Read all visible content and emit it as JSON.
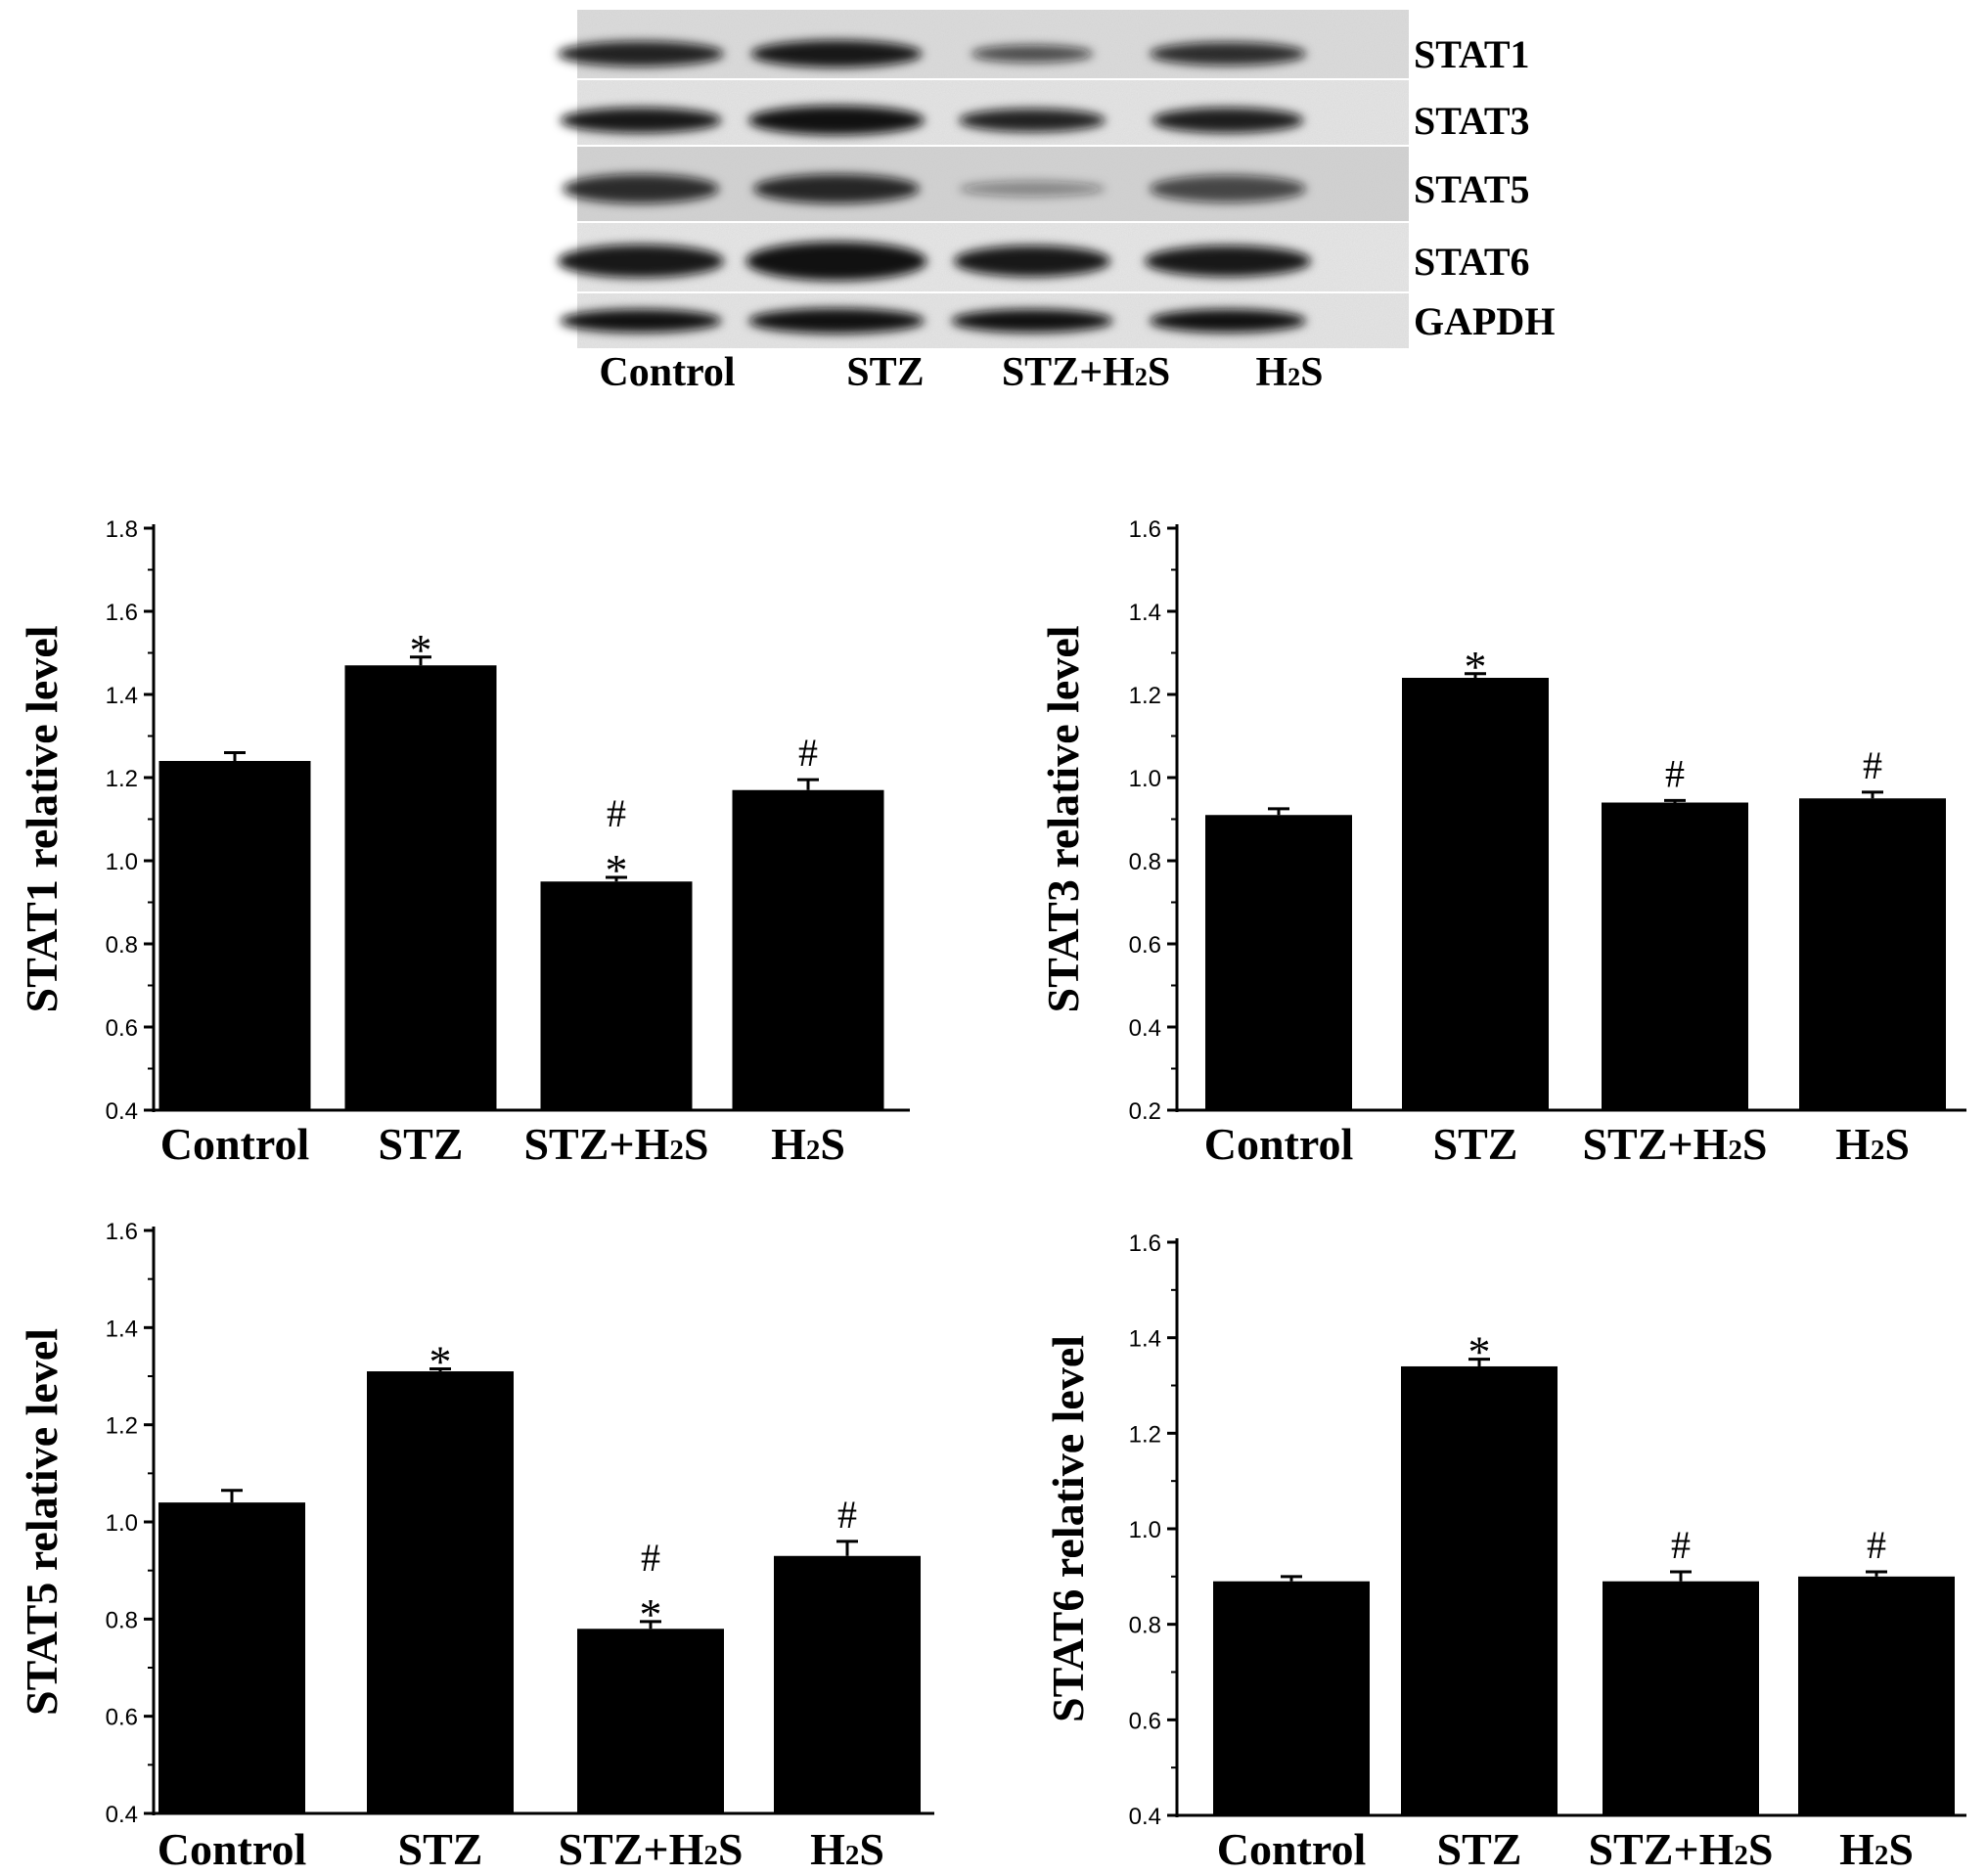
{
  "blot": {
    "proteins": [
      "STAT1",
      "STAT3",
      "STAT5",
      "STAT6",
      "GAPDH"
    ],
    "lanes": [
      {
        "main": "Control",
        "sub": "",
        "tail": ""
      },
      {
        "main": "STZ",
        "sub": "",
        "tail": ""
      },
      {
        "main": "STZ+H",
        "sub": "2",
        "tail": "S"
      },
      {
        "main": "H",
        "sub": "2",
        "tail": "S"
      }
    ]
  },
  "chart_data": [
    {
      "type": "bar",
      "ylabel": "STAT1 relative level",
      "categories": [
        {
          "main": "Control",
          "sub": "",
          "tail": ""
        },
        {
          "main": "STZ",
          "sub": "",
          "tail": ""
        },
        {
          "main": "STZ+H",
          "sub": "2",
          "tail": "S"
        },
        {
          "main": "H",
          "sub": "2",
          "tail": "S"
        }
      ],
      "values": [
        1.24,
        1.47,
        0.95,
        1.17
      ],
      "errors": [
        0.02,
        0.02,
        0.01,
        0.025
      ],
      "annotations": [
        [],
        [
          "*"
        ],
        [
          "*",
          "#"
        ],
        [
          "#"
        ]
      ],
      "ylim": [
        0.4,
        1.8
      ],
      "yticks": [
        "0.4",
        "0.6",
        "0.8",
        "1.0",
        "1.2",
        "1.4",
        "1.6",
        "1.8"
      ],
      "bar_color": "#000000"
    },
    {
      "type": "bar",
      "ylabel": "STAT3 relative level",
      "categories": [
        {
          "main": "Control",
          "sub": "",
          "tail": ""
        },
        {
          "main": "STZ",
          "sub": "",
          "tail": ""
        },
        {
          "main": "STZ+H",
          "sub": "2",
          "tail": "S"
        },
        {
          "main": "H",
          "sub": "2",
          "tail": "S"
        }
      ],
      "values": [
        0.91,
        1.24,
        0.94,
        0.95
      ],
      "errors": [
        0.015,
        0.01,
        0.005,
        0.015
      ],
      "annotations": [
        [],
        [
          "*"
        ],
        [
          "#"
        ],
        [
          "#"
        ]
      ],
      "ylim": [
        0.2,
        1.6
      ],
      "yticks": [
        "0.2",
        "0.4",
        "0.6",
        "0.8",
        "1.0",
        "1.2",
        "1.4",
        "1.6"
      ],
      "bar_color": "#000000"
    },
    {
      "type": "bar",
      "ylabel": "STAT5 relative level",
      "categories": [
        {
          "main": "Control",
          "sub": "",
          "tail": ""
        },
        {
          "main": "STZ",
          "sub": "",
          "tail": ""
        },
        {
          "main": "STZ+H",
          "sub": "2",
          "tail": "S"
        },
        {
          "main": "H",
          "sub": "2",
          "tail": "S"
        }
      ],
      "values": [
        1.04,
        1.31,
        0.78,
        0.93
      ],
      "errors": [
        0.025,
        0.005,
        0.015,
        0.03
      ],
      "annotations": [
        [],
        [
          "*"
        ],
        [
          "*",
          "#"
        ],
        [
          "#"
        ]
      ],
      "ylim": [
        0.4,
        1.6
      ],
      "yticks": [
        "0.4",
        "0.6",
        "0.8",
        "1.0",
        "1.2",
        "1.4",
        "1.6"
      ],
      "bar_color": "#000000"
    },
    {
      "type": "bar",
      "ylabel": "STAT6 relative level",
      "categories": [
        {
          "main": "Control",
          "sub": "",
          "tail": ""
        },
        {
          "main": "STZ",
          "sub": "",
          "tail": ""
        },
        {
          "main": "STZ+H",
          "sub": "2",
          "tail": "S"
        },
        {
          "main": "H",
          "sub": "2",
          "tail": "S"
        }
      ],
      "values": [
        0.89,
        1.34,
        0.89,
        0.9
      ],
      "errors": [
        0.01,
        0.015,
        0.02,
        0.01
      ],
      "annotations": [
        [],
        [
          "*"
        ],
        [
          "#"
        ],
        [
          "#"
        ]
      ],
      "ylim": [
        0.4,
        1.6
      ],
      "yticks": [
        "0.4",
        "0.6",
        "0.8",
        "1.0",
        "1.2",
        "1.4",
        "1.6"
      ],
      "bar_color": "#000000"
    }
  ]
}
